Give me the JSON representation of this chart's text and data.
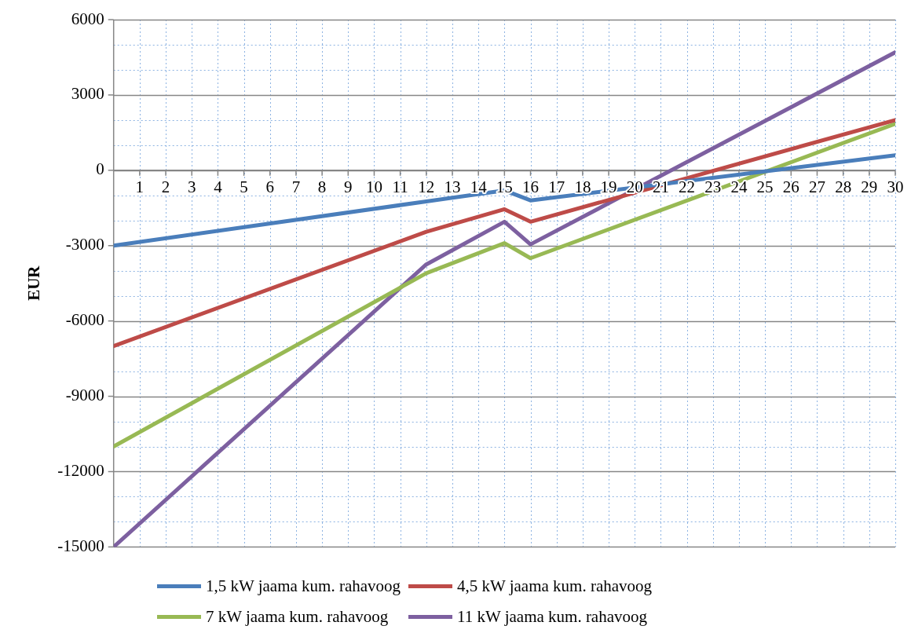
{
  "chart_data": {
    "type": "line",
    "ylabel": "EUR",
    "xlim": [
      0,
      30
    ],
    "xticks": [
      1,
      2,
      3,
      4,
      5,
      6,
      7,
      8,
      9,
      10,
      11,
      12,
      13,
      14,
      15,
      16,
      17,
      18,
      19,
      20,
      21,
      22,
      23,
      24,
      25,
      26,
      27,
      28,
      29,
      30
    ],
    "ylim": [
      -15000,
      6000
    ],
    "yticks": [
      -15000,
      {
        "value": -14000,
        "label": null
      },
      {
        "value": -13000,
        "label": null
      },
      -12000,
      {
        "value": -11000,
        "label": null
      },
      {
        "value": -10000,
        "label": null
      },
      -9000,
      {
        "value": -8000,
        "label": null
      },
      {
        "value": -7000,
        "label": null
      },
      -6000,
      {
        "value": -5000,
        "label": null
      },
      {
        "value": -4000,
        "label": null
      },
      -3000,
      {
        "value": -2000,
        "label": null
      },
      {
        "value": -1000,
        "label": null
      },
      0,
      {
        "value": 1000,
        "label": null
      },
      {
        "value": 2000,
        "label": null
      },
      3000,
      {
        "value": 4000,
        "label": null
      },
      {
        "value": 5000,
        "label": null
      },
      6000
    ],
    "grid": true,
    "legend": "bottom",
    "marker": "none",
    "line_style": "solid",
    "series": [
      {
        "name": "1,5 kW jaama kum. rahavoog",
        "color": "#4a7ebb",
        "x": [
          0,
          15,
          16,
          30
        ],
        "values": [
          -3000,
          -800,
          -1200,
          600
        ]
      },
      {
        "name": "4,5 kW jaama kum. rahavoog",
        "color": "#be4b48",
        "x": [
          0,
          12,
          15,
          16,
          30
        ],
        "values": [
          -7000,
          -2450,
          -1550,
          -2050,
          2000
        ]
      },
      {
        "name": "7 kW jaama kum. rahavoog",
        "color": "#98b954",
        "x": [
          0,
          12,
          15,
          16,
          30
        ],
        "values": [
          -11000,
          -4100,
          -2900,
          -3500,
          1850
        ]
      },
      {
        "name": "11 kW jaama kum. rahavoog",
        "color": "#7d60a0",
        "x": [
          0,
          12,
          15,
          16,
          30
        ],
        "values": [
          -15000,
          -3750,
          -2050,
          -2950,
          4700
        ]
      }
    ]
  }
}
